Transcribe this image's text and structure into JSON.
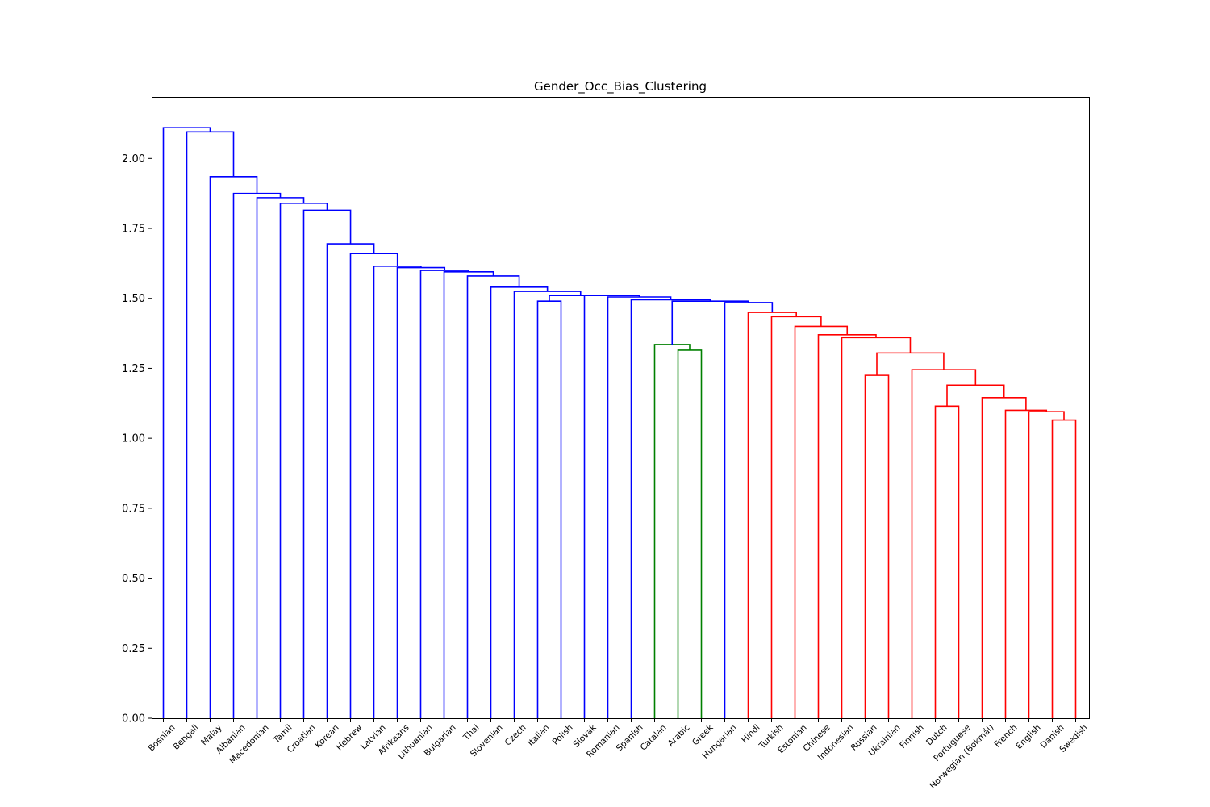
{
  "chart_data": {
    "type": "dendrogram",
    "title": "Gender_Occ_Bias_Clustering",
    "ylim": [
      0,
      2.22
    ],
    "yticks": [
      "0.00",
      "0.25",
      "0.50",
      "0.75",
      "1.00",
      "1.25",
      "1.50",
      "1.75",
      "2.00"
    ],
    "colors": {
      "blue": "#0000ff",
      "green": "#008000",
      "red": "#ff0000"
    },
    "leaves": [
      "Bosnian",
      "Bengali",
      "Malay",
      "Albanian",
      "Macedonian",
      "Tamil",
      "Croatian",
      "Korean",
      "Hebrew",
      "Latvian",
      "Afrikaans",
      "Lithuanian",
      "Bulgarian",
      "Thai",
      "Slovenian",
      "Czech",
      "Italian",
      "Polish",
      "Slovak",
      "Romanian",
      "Spanish",
      "Catalan",
      "Arabic",
      "Greek",
      "Hungarian",
      "Hindi",
      "Turkish",
      "Estonian",
      "Chinese",
      "Indonesian",
      "Russian",
      "Ukrainian",
      "Finnish",
      "Dutch",
      "Portuguese",
      "Norwegian (Bokmål)",
      "French",
      "English",
      "Danish",
      "Swedish"
    ],
    "merges": [
      {
        "left": "Danish",
        "right": "Swedish",
        "height": 1.065,
        "color": "red"
      },
      {
        "left": "English",
        "right": "m1",
        "height": 1.095,
        "color": "red"
      },
      {
        "left": "French",
        "right": "m2",
        "height": 1.1,
        "color": "red"
      },
      {
        "left": "Norwegian (Bokmål)",
        "right": "m3",
        "height": 1.145,
        "color": "red"
      },
      {
        "left": "Dutch",
        "right": "Portuguese",
        "height": 1.115,
        "color": "red"
      },
      {
        "left": "m5",
        "right": "m4",
        "height": 1.19,
        "color": "red"
      },
      {
        "left": "Finnish",
        "right": "m6",
        "height": 1.245,
        "color": "red"
      },
      {
        "left": "Russian",
        "right": "Ukrainian",
        "height": 1.225,
        "color": "red"
      },
      {
        "left": "m8",
        "right": "m7",
        "height": 1.305,
        "color": "red"
      },
      {
        "left": "Indonesian",
        "right": "m9",
        "height": 1.36,
        "color": "red"
      },
      {
        "left": "Chinese",
        "right": "m10",
        "height": 1.37,
        "color": "red"
      },
      {
        "left": "Estonian",
        "right": "m11",
        "height": 1.4,
        "color": "red"
      },
      {
        "left": "Turkish",
        "right": "m12",
        "height": 1.435,
        "color": "red"
      },
      {
        "left": "Hindi",
        "right": "m13",
        "height": 1.45,
        "color": "red"
      },
      {
        "left": "Hungarian",
        "right": "m14",
        "height": 1.485,
        "color": "blue"
      },
      {
        "left": "Arabic",
        "right": "Greek",
        "height": 1.315,
        "color": "green"
      },
      {
        "left": "Catalan",
        "right": "m16",
        "height": 1.335,
        "color": "green"
      },
      {
        "left": "m17",
        "right": "m15",
        "height": 1.49,
        "color": "blue"
      },
      {
        "left": "Spanish",
        "right": "m18",
        "height": 1.495,
        "color": "blue"
      },
      {
        "left": "Romanian",
        "right": "m19",
        "height": 1.505,
        "color": "blue"
      },
      {
        "left": "Slovak",
        "right": "m20",
        "height": 1.51,
        "color": "blue"
      },
      {
        "left": "Italian",
        "right": "Polish",
        "height": 1.49,
        "color": "blue"
      },
      {
        "left": "m22",
        "right": "m21",
        "height": 1.51,
        "color": "blue"
      },
      {
        "left": "Czech",
        "right": "m23",
        "height": 1.525,
        "color": "blue"
      },
      {
        "left": "Slovenian",
        "right": "m24",
        "height": 1.54,
        "color": "blue"
      },
      {
        "left": "Thai",
        "right": "m25",
        "height": 1.58,
        "color": "blue"
      },
      {
        "left": "Bulgarian",
        "right": "m26",
        "height": 1.595,
        "color": "blue"
      },
      {
        "left": "Lithuanian",
        "right": "m27",
        "height": 1.6,
        "color": "blue"
      },
      {
        "left": "Afrikaans",
        "right": "m28",
        "height": 1.61,
        "color": "blue"
      },
      {
        "left": "Latvian",
        "right": "m29",
        "height": 1.615,
        "color": "blue"
      },
      {
        "left": "Hebrew",
        "right": "m30",
        "height": 1.66,
        "color": "blue"
      },
      {
        "left": "Korean",
        "right": "m31",
        "height": 1.695,
        "color": "blue"
      },
      {
        "left": "Croatian",
        "right": "m32",
        "height": 1.815,
        "color": "blue"
      },
      {
        "left": "Tamil",
        "right": "m33",
        "height": 1.84,
        "color": "blue"
      },
      {
        "left": "Macedonian",
        "right": "m34",
        "height": 1.86,
        "color": "blue"
      },
      {
        "left": "Albanian",
        "right": "m35",
        "height": 1.875,
        "color": "blue"
      },
      {
        "left": "Malay",
        "right": "m36",
        "height": 1.935,
        "color": "blue"
      },
      {
        "left": "Bengali",
        "right": "m37",
        "height": 2.095,
        "color": "blue"
      },
      {
        "left": "Bosnian",
        "right": "m38",
        "height": 2.11,
        "color": "blue"
      }
    ]
  }
}
